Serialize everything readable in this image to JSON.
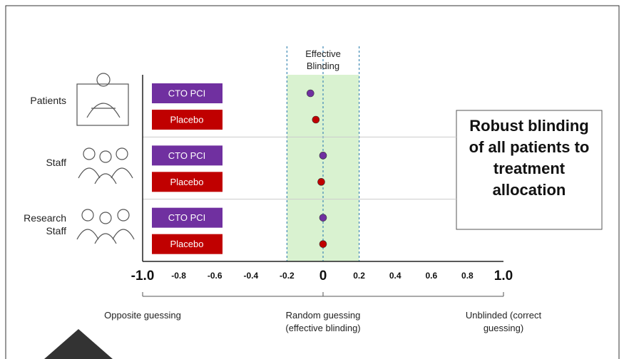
{
  "chart_data": {
    "type": "dot",
    "categories": [
      "Patients",
      "Staff",
      "Research Staff"
    ],
    "series": [
      {
        "name": "CTO PCI",
        "color": "#7030a0",
        "values": [
          -0.07,
          0,
          0
        ]
      },
      {
        "name": "Placebo",
        "color": "#c00000",
        "values": [
          -0.04,
          -0.01,
          0
        ]
      }
    ],
    "xlim": [
      -1.0,
      1.0
    ],
    "xticks": [
      {
        "value": -1.0,
        "label": "-1.0"
      },
      -0.8,
      -0.6,
      -0.4,
      -0.2,
      0,
      0.2,
      0.4,
      0.6,
      0.8,
      {
        "value": 1.0,
        "label": "1.0"
      }
    ],
    "shaded_range": [
      -0.2,
      0.2
    ],
    "shaded_label": "Effective Blinding",
    "scale_labels": [
      "Opposite guessing",
      "Random guessing (effective blinding)",
      "Unblinded (correct guessing)"
    ],
    "callout": "Robust blinding of all patients to treatment allocation"
  }
}
